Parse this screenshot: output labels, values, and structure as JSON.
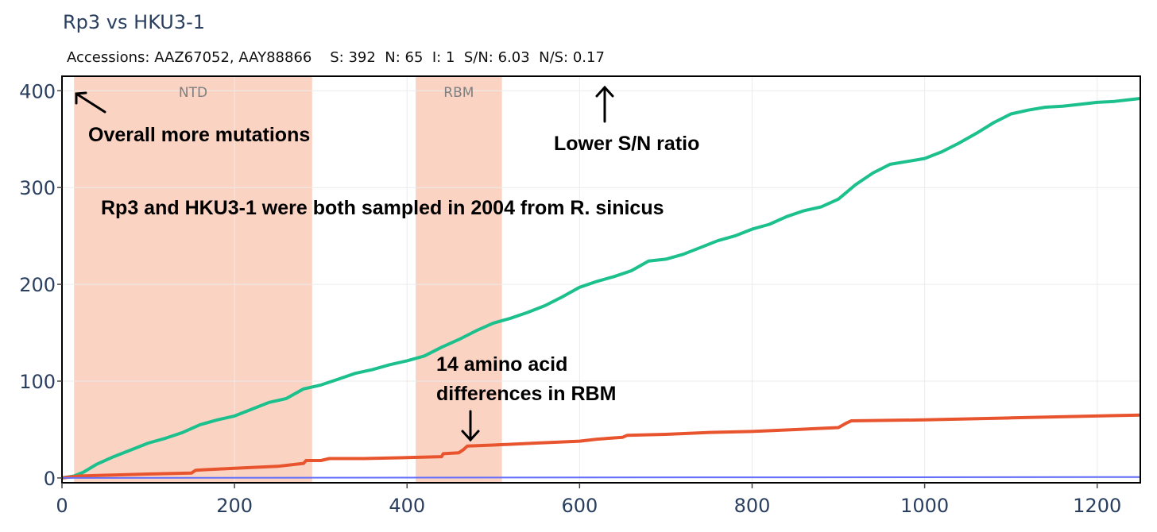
{
  "header": {
    "title": "Rp3 vs HKU3-1",
    "subtitle": "Accessions: AAZ67052, AAY88866    S: 392  N: 65  I: 1  S/N: 6.03  N/S: 0.17"
  },
  "chart_data": {
    "type": "line",
    "title": "Rp3 vs HKU3-1",
    "xlabel": "",
    "ylabel": "",
    "xlim": [
      0,
      1250
    ],
    "ylim": [
      -5,
      415
    ],
    "x_ticks": [
      0,
      200,
      400,
      600,
      800,
      1000,
      1200
    ],
    "y_ticks": [
      0,
      100,
      200,
      300,
      400
    ],
    "grid": true,
    "regions": [
      {
        "label": "NTD",
        "x_start": 14,
        "x_end": 290,
        "color": "#fbd3c3"
      },
      {
        "label": "RBM",
        "x_start": 410,
        "x_end": 510,
        "color": "#fbd3c3"
      }
    ],
    "series": [
      {
        "name": "S",
        "color": "#1cc08c",
        "points": [
          [
            0,
            0
          ],
          [
            14,
            2
          ],
          [
            25,
            6
          ],
          [
            40,
            14
          ],
          [
            60,
            22
          ],
          [
            80,
            29
          ],
          [
            100,
            36
          ],
          [
            120,
            41
          ],
          [
            140,
            47
          ],
          [
            160,
            55
          ],
          [
            180,
            60
          ],
          [
            200,
            64
          ],
          [
            220,
            71
          ],
          [
            240,
            78
          ],
          [
            260,
            82
          ],
          [
            280,
            92
          ],
          [
            300,
            96
          ],
          [
            320,
            102
          ],
          [
            340,
            108
          ],
          [
            360,
            112
          ],
          [
            380,
            117
          ],
          [
            400,
            121
          ],
          [
            420,
            126
          ],
          [
            440,
            135
          ],
          [
            460,
            143
          ],
          [
            480,
            152
          ],
          [
            500,
            160
          ],
          [
            520,
            165
          ],
          [
            540,
            171
          ],
          [
            560,
            178
          ],
          [
            580,
            187
          ],
          [
            600,
            197
          ],
          [
            620,
            203
          ],
          [
            640,
            208
          ],
          [
            660,
            214
          ],
          [
            680,
            224
          ],
          [
            700,
            226
          ],
          [
            720,
            231
          ],
          [
            740,
            238
          ],
          [
            760,
            245
          ],
          [
            780,
            250
          ],
          [
            800,
            257
          ],
          [
            820,
            262
          ],
          [
            840,
            270
          ],
          [
            860,
            276
          ],
          [
            880,
            280
          ],
          [
            900,
            288
          ],
          [
            920,
            303
          ],
          [
            940,
            315
          ],
          [
            960,
            324
          ],
          [
            980,
            327
          ],
          [
            1000,
            330
          ],
          [
            1020,
            337
          ],
          [
            1040,
            346
          ],
          [
            1060,
            356
          ],
          [
            1080,
            367
          ],
          [
            1100,
            376
          ],
          [
            1120,
            380
          ],
          [
            1140,
            383
          ],
          [
            1160,
            384
          ],
          [
            1180,
            386
          ],
          [
            1200,
            388
          ],
          [
            1220,
            389
          ],
          [
            1250,
            392
          ]
        ]
      },
      {
        "name": "N",
        "color": "#e8542e",
        "points": [
          [
            0,
            0
          ],
          [
            20,
            2
          ],
          [
            60,
            3
          ],
          [
            100,
            4
          ],
          [
            150,
            5
          ],
          [
            155,
            8
          ],
          [
            200,
            10
          ],
          [
            250,
            12
          ],
          [
            280,
            15
          ],
          [
            283,
            18
          ],
          [
            300,
            18
          ],
          [
            310,
            20
          ],
          [
            350,
            20
          ],
          [
            400,
            21
          ],
          [
            440,
            22
          ],
          [
            442,
            25
          ],
          [
            460,
            26
          ],
          [
            465,
            29
          ],
          [
            470,
            33
          ],
          [
            500,
            34
          ],
          [
            550,
            36
          ],
          [
            600,
            38
          ],
          [
            620,
            40
          ],
          [
            650,
            42
          ],
          [
            655,
            44
          ],
          [
            700,
            45
          ],
          [
            750,
            47
          ],
          [
            800,
            48
          ],
          [
            850,
            50
          ],
          [
            900,
            52
          ],
          [
            910,
            57
          ],
          [
            915,
            59
          ],
          [
            1000,
            60
          ],
          [
            1100,
            62
          ],
          [
            1200,
            64
          ],
          [
            1250,
            65
          ]
        ]
      },
      {
        "name": "I",
        "color": "#636efa",
        "points": [
          [
            0,
            0
          ],
          [
            1250,
            1
          ]
        ]
      }
    ],
    "annotations": [
      {
        "id": "overall",
        "text": "Overall more mutations",
        "arrow": "up-left"
      },
      {
        "id": "sn",
        "text": "Lower S/N ratio",
        "arrow": "up"
      },
      {
        "id": "sampled",
        "text": "Rp3 and HKU3-1 were both sampled in 2004 from R. sinicus",
        "arrow": "none"
      },
      {
        "id": "rbm_line1",
        "text": "14 amino acid",
        "arrow": "none"
      },
      {
        "id": "rbm_line2",
        "text": "differences in RBM",
        "arrow": "down"
      }
    ]
  }
}
